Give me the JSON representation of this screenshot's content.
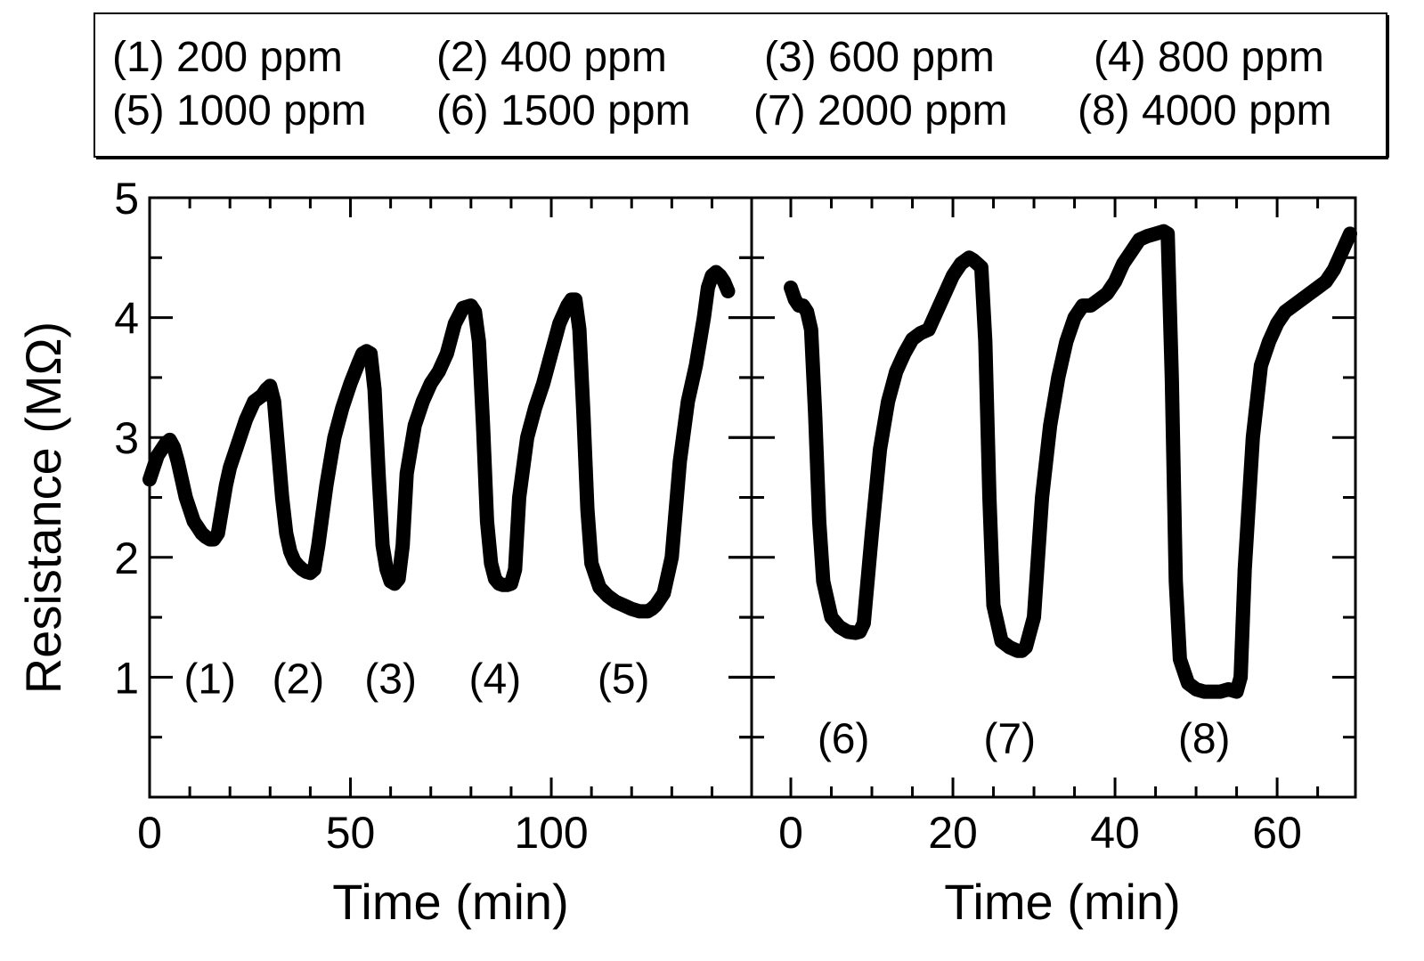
{
  "chart_data": {
    "type": "scatter",
    "ylabel": "Resistance (MΩ)",
    "legend": {
      "placement": "top",
      "entries": [
        "(1) 200 ppm",
        "(2) 400 ppm",
        "(3) 600 ppm",
        "(4) 800 ppm",
        "(5) 1000 ppm",
        "(6) 1500 ppm",
        "(7) 2000 ppm",
        "(8) 4000 ppm"
      ]
    },
    "ylim": [
      0,
      5
    ],
    "yticks": [
      1,
      2,
      3,
      4,
      5
    ],
    "yticklabels": [
      "1",
      "2",
      "3",
      "4",
      "5"
    ],
    "colors": {
      "marker": "#000000",
      "marker_fill": "#ffffff",
      "axis": "#000000"
    },
    "panels": [
      {
        "xlabel": "Time (min)",
        "xlim": [
          0,
          145
        ],
        "xticks": [
          0,
          50,
          100
        ],
        "xticklabels": [
          "0",
          "50",
          "100"
        ],
        "annotations": [
          {
            "text": "(1)",
            "x": 15,
            "y": 1.0
          },
          {
            "text": "(2)",
            "x": 37,
            "y": 1.0
          },
          {
            "text": "(3)",
            "x": 60,
            "y": 1.0
          },
          {
            "text": "(4)",
            "x": 86,
            "y": 1.0
          },
          {
            "text": "(5)",
            "x": 118,
            "y": 1.0
          }
        ],
        "series": {
          "name": "Resistance",
          "x": [
            0,
            1,
            2,
            3,
            4,
            5,
            6,
            7,
            8,
            9,
            10,
            11,
            12,
            13,
            14,
            15,
            16,
            17,
            18,
            19,
            20,
            22,
            24,
            26,
            28,
            29,
            30,
            31,
            32,
            33,
            34,
            35,
            36,
            37,
            38,
            39,
            40,
            41,
            42,
            44,
            46,
            48,
            50,
            52,
            53,
            54,
            55,
            56,
            57,
            58,
            59,
            60,
            61,
            62,
            63,
            64,
            66,
            68,
            70,
            72,
            74,
            76,
            78,
            80,
            81,
            82,
            83,
            84,
            85,
            86,
            87,
            88,
            89,
            90,
            91,
            92,
            94,
            96,
            98,
            100,
            102,
            104,
            105,
            106,
            107,
            108,
            109,
            110,
            112,
            114,
            116,
            118,
            120,
            122,
            124,
            125,
            126,
            127,
            128,
            130,
            132,
            134,
            136,
            138,
            139,
            140,
            141,
            142,
            143,
            144
          ],
          "values": [
            2.65,
            2.75,
            2.85,
            2.9,
            2.95,
            2.98,
            2.92,
            2.8,
            2.65,
            2.5,
            2.4,
            2.3,
            2.25,
            2.2,
            2.17,
            2.15,
            2.15,
            2.2,
            2.4,
            2.6,
            2.75,
            2.95,
            3.15,
            3.3,
            3.35,
            3.4,
            3.43,
            3.3,
            2.9,
            2.5,
            2.2,
            2.05,
            1.97,
            1.93,
            1.9,
            1.88,
            1.87,
            1.9,
            2.1,
            2.6,
            3.0,
            3.25,
            3.45,
            3.62,
            3.7,
            3.72,
            3.7,
            3.4,
            2.7,
            2.1,
            1.9,
            1.8,
            1.78,
            1.82,
            2.1,
            2.7,
            3.1,
            3.3,
            3.45,
            3.55,
            3.7,
            3.95,
            4.08,
            4.1,
            4.05,
            3.8,
            3.1,
            2.3,
            1.95,
            1.82,
            1.78,
            1.77,
            1.77,
            1.78,
            1.9,
            2.5,
            3.0,
            3.25,
            3.45,
            3.7,
            3.95,
            4.1,
            4.15,
            4.15,
            3.9,
            3.2,
            2.4,
            1.95,
            1.75,
            1.68,
            1.63,
            1.6,
            1.57,
            1.55,
            1.55,
            1.57,
            1.6,
            1.65,
            1.7,
            2.0,
            2.8,
            3.3,
            3.6,
            4.0,
            4.25,
            4.35,
            4.38,
            4.35,
            4.3,
            4.22
          ]
        }
      },
      {
        "xlabel": "Time (min)",
        "xlim": [
          0,
          69
        ],
        "xticks": [
          0,
          20,
          40,
          60
        ],
        "xticklabels": [
          "0",
          "20",
          "40",
          "60"
        ],
        "annotations": [
          {
            "text": "(6)",
            "x": 6.5,
            "y": 0.5
          },
          {
            "text": "(7)",
            "x": 27,
            "y": 0.5
          },
          {
            "text": "(8)",
            "x": 51,
            "y": 0.5
          }
        ],
        "series": {
          "name": "Resistance",
          "x": [
            0,
            0.5,
            1,
            1.5,
            2,
            2.5,
            3,
            3.5,
            4,
            5,
            6,
            7,
            8,
            8.5,
            9,
            10,
            11,
            12,
            13,
            14,
            15,
            16,
            17,
            18,
            19,
            20,
            21,
            22,
            22.5,
            23,
            23.5,
            24,
            24.5,
            25,
            26,
            27,
            28,
            28.5,
            29,
            30,
            31,
            32,
            33,
            34,
            35,
            36,
            37,
            38,
            39,
            40,
            41,
            42,
            43,
            44,
            45,
            46,
            46.5,
            47,
            47.5,
            48,
            49,
            50,
            51,
            52,
            53,
            54,
            55,
            55.5,
            56,
            57,
            58,
            59,
            60,
            61,
            62,
            63,
            64,
            65,
            66,
            67,
            68,
            69
          ],
          "values": [
            4.25,
            4.15,
            4.1,
            4.1,
            4.05,
            3.9,
            3.2,
            2.3,
            1.8,
            1.5,
            1.42,
            1.38,
            1.37,
            1.38,
            1.45,
            2.2,
            2.9,
            3.3,
            3.55,
            3.7,
            3.82,
            3.87,
            3.9,
            4.05,
            4.2,
            4.35,
            4.45,
            4.5,
            4.48,
            4.45,
            4.42,
            3.8,
            2.5,
            1.6,
            1.3,
            1.25,
            1.22,
            1.22,
            1.25,
            1.5,
            2.5,
            3.1,
            3.5,
            3.8,
            4.0,
            4.1,
            4.1,
            4.15,
            4.2,
            4.3,
            4.45,
            4.55,
            4.65,
            4.68,
            4.7,
            4.72,
            4.7,
            3.5,
            1.8,
            1.15,
            0.95,
            0.9,
            0.88,
            0.88,
            0.88,
            0.9,
            0.88,
            1.0,
            1.9,
            3.0,
            3.6,
            3.8,
            3.95,
            4.05,
            4.1,
            4.15,
            4.2,
            4.25,
            4.3,
            4.4,
            4.55,
            4.7
          ]
        }
      }
    ]
  }
}
